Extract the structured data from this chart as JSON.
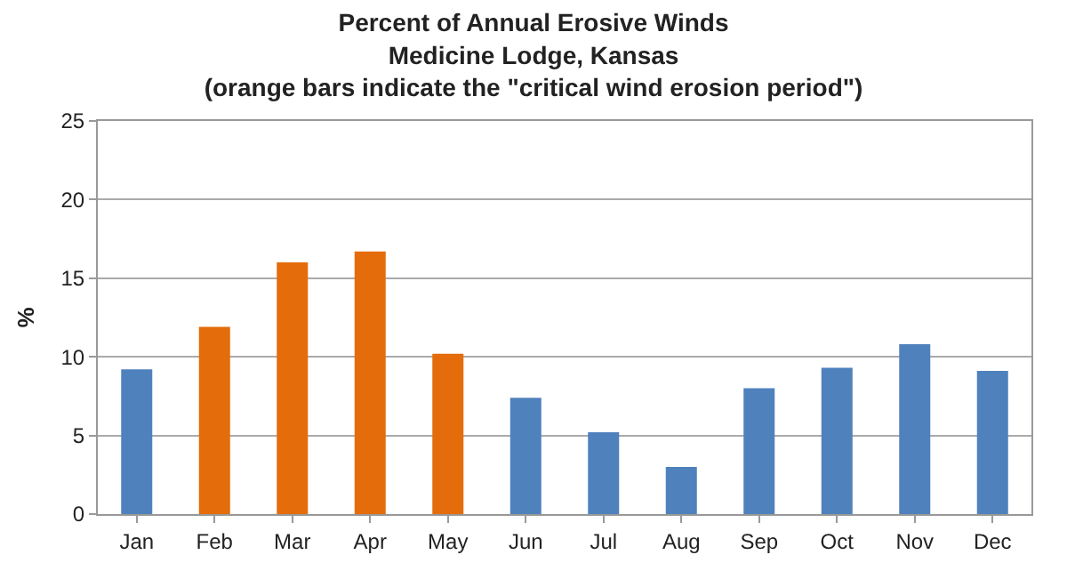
{
  "chart_data": {
    "type": "bar",
    "title": "Percent of Annual Erosive Winds\nMedicine Lodge, Kansas\n(orange bars indicate the \"critical wind erosion period\")",
    "ylabel": "%",
    "categories": [
      "Jan",
      "Feb",
      "Mar",
      "Apr",
      "May",
      "Jun",
      "Jul",
      "Aug",
      "Sep",
      "Oct",
      "Nov",
      "Dec"
    ],
    "values": [
      9.2,
      11.9,
      16.0,
      16.7,
      10.2,
      7.4,
      5.2,
      3.0,
      8.0,
      9.3,
      10.8,
      9.1
    ],
    "colors": [
      "#4f81bd",
      "#e46c0a",
      "#e46c0a",
      "#e46c0a",
      "#e46c0a",
      "#4f81bd",
      "#4f81bd",
      "#4f81bd",
      "#4f81bd",
      "#4f81bd",
      "#4f81bd",
      "#4f81bd"
    ],
    "ylim": [
      0,
      25
    ],
    "yticks": [
      0,
      5,
      10,
      15,
      20,
      25
    ],
    "grid": "y",
    "legend": false
  }
}
